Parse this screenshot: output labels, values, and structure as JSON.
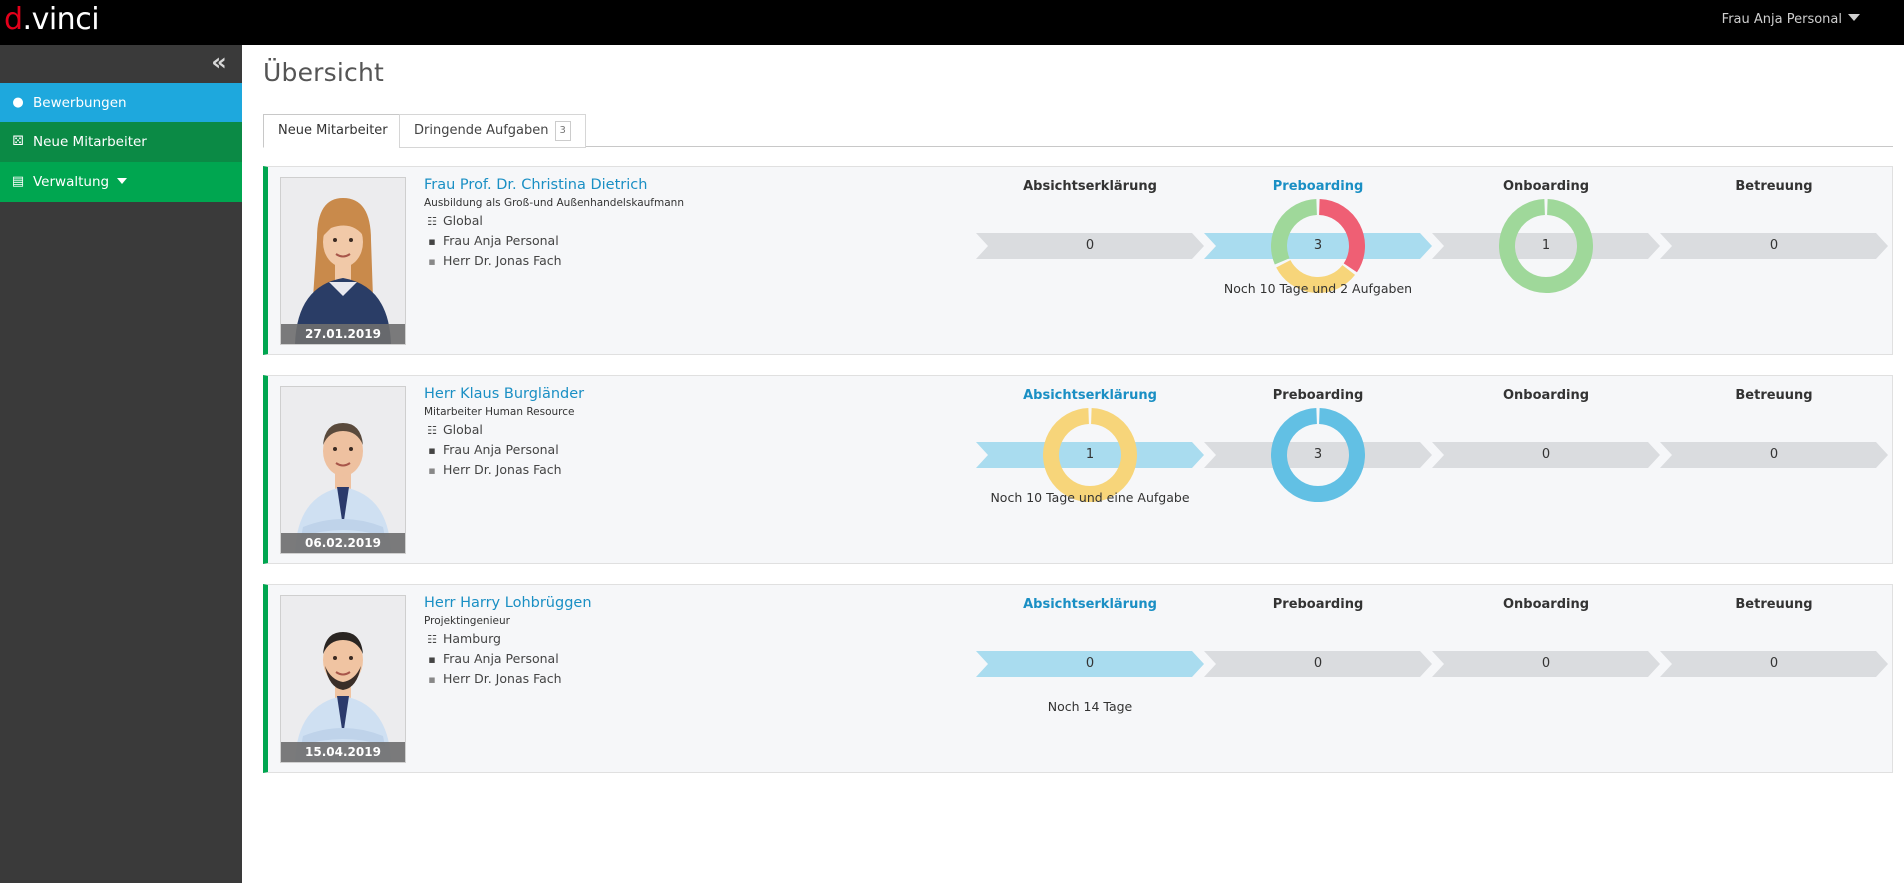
{
  "app": {
    "logo_d": "d",
    "logo_dot": ".",
    "logo_rest": "vinci",
    "user": "Frau Anja Personal"
  },
  "sidebar": {
    "items": [
      {
        "label": "Bewerbungen",
        "icon": "user-icon"
      },
      {
        "label": "Neue Mitarbeiter",
        "icon": "handshake-icon"
      },
      {
        "label": "Verwaltung",
        "icon": "table-icon"
      }
    ]
  },
  "main": {
    "title": "Übersicht",
    "tabs": [
      {
        "label": "Neue Mitarbeiter",
        "active": true
      },
      {
        "label": "Dringende Aufgaben",
        "badge": "3"
      }
    ]
  },
  "stages": [
    "Absichtserklärung",
    "Preboarding",
    "Onboarding",
    "Betreuung"
  ],
  "employees": [
    {
      "name": "Frau Prof. Dr. Christina Dietrich",
      "job": "Ausbildung als Groß-und Außenhandelskaufmann",
      "location": "Global",
      "contact1": "Frau Anja Personal",
      "contact2": "Herr Dr. Jonas Fach",
      "date": "27.01.2019",
      "active_stage": 1,
      "values": [
        "0",
        "3",
        "1",
        "0"
      ],
      "note": "Noch 10 Tage und 2 Aufgaben",
      "note_stage": 1
    },
    {
      "name": "Herr Klaus Burgländer",
      "job": "Mitarbeiter Human Resource",
      "location": "Global",
      "contact1": "Frau Anja Personal",
      "contact2": "Herr Dr. Jonas Fach",
      "date": "06.02.2019",
      "active_stage": 0,
      "values": [
        "1",
        "3",
        "0",
        "0"
      ],
      "note": "Noch 10 Tage und eine Aufgabe",
      "note_stage": 0
    },
    {
      "name": "Herr Harry Lohbrüggen",
      "job": "Projektingenieur",
      "location": "Hamburg",
      "contact1": "Frau Anja Personal",
      "contact2": "Herr Dr. Jonas Fach",
      "date": "15.04.2019",
      "active_stage": 0,
      "values": [
        "0",
        "0",
        "0",
        "0"
      ],
      "note": "Noch 14 Tage",
      "note_stage": 0
    }
  ],
  "colors": {
    "green": "#00a650",
    "blue": "#1ea8dd",
    "red": "#ef5f74",
    "yellow": "#f7d57a",
    "light_green": "#9fd89a",
    "donut_blue": "#62c0e4",
    "chevron_grey": "#dadcdf",
    "chevron_blue": "#a9dcef"
  }
}
